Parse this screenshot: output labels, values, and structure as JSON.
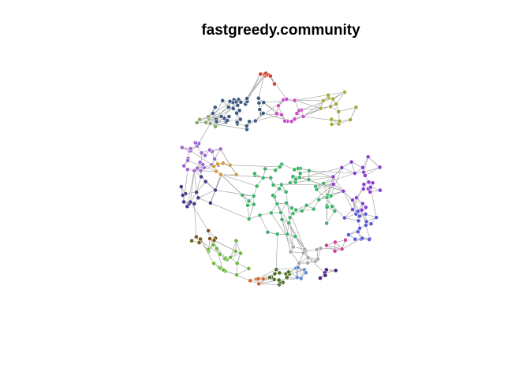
{
  "plot": {
    "title": "fastgreedy.community"
  },
  "communities": [
    {
      "id": "c1",
      "color": "#D1432A",
      "size": 7
    },
    {
      "id": "c2",
      "color": "#3E5A7E",
      "size": 38
    },
    {
      "id": "c3",
      "color": "#C94EC7",
      "size": 14
    },
    {
      "id": "c4",
      "color": "#A6A83A",
      "size": 16
    },
    {
      "id": "c5",
      "color": "#88A86A",
      "size": 8
    },
    {
      "id": "c6",
      "color": "#9D6AD0",
      "size": 26
    },
    {
      "id": "c7",
      "color": "#CF9C3E",
      "size": 8
    },
    {
      "id": "c8",
      "color": "#3FB36A",
      "size": 62
    },
    {
      "id": "c9",
      "color": "#8A3FCF",
      "size": 24
    },
    {
      "id": "c10",
      "color": "#453B84",
      "size": 14
    },
    {
      "id": "c11",
      "color": "#5B5AD8",
      "size": 20
    },
    {
      "id": "c12",
      "color": "#7A5A1E",
      "size": 9
    },
    {
      "id": "c13",
      "color": "#6DB83D",
      "size": 22
    },
    {
      "id": "c14",
      "color": "#A8A8A8",
      "size": 12
    },
    {
      "id": "c15",
      "color": "#4C6F2A",
      "size": 14
    },
    {
      "id": "c16",
      "color": "#D4662A",
      "size": 5
    },
    {
      "id": "c17",
      "color": "#5E8AD0",
      "size": 6
    },
    {
      "id": "c18",
      "color": "#4A1E7A",
      "size": 6
    },
    {
      "id": "c19",
      "color": "#D83C9E",
      "size": 5
    }
  ]
}
